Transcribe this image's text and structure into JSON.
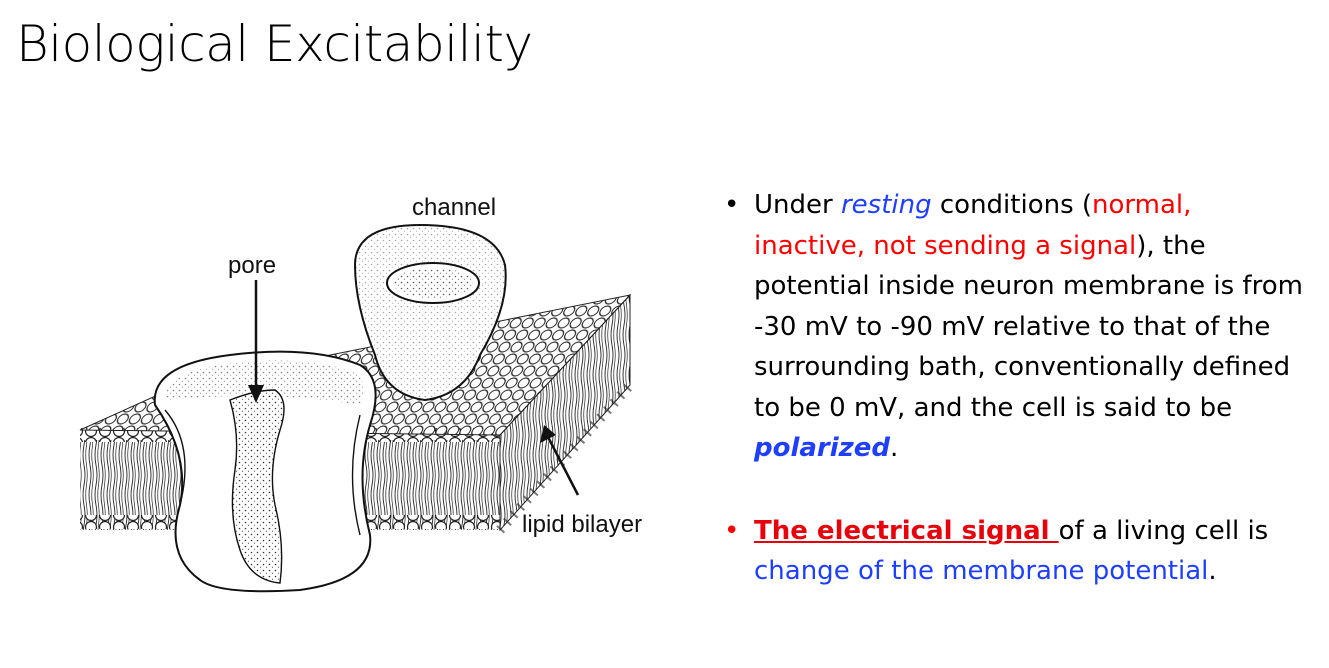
{
  "slide": {
    "title": "Biological Excitability"
  },
  "figure": {
    "labels": {
      "channel": "channel",
      "pore": "pore",
      "lipid_bilayer": "lipid bilayer"
    }
  },
  "bullets": {
    "bullet1": {
      "t1": "Under ",
      "resting": "resting",
      "t2": " conditions (",
      "normal": "normal, inactive, not sending a signal",
      "t3": "), the potential inside neuron membrane is from -30 mV to -90 mV relative to that of the surrounding bath, conventionally defined to be 0 mV, and the cell is said to be ",
      "polarized": "polarized",
      "t4": "."
    },
    "bullet2": {
      "signal": "The electrical signal ",
      "t1": "of a living cell is ",
      "change": "change of the membrane potential",
      "t2": "."
    }
  },
  "colors": {
    "text": "#000000",
    "blue_emphasis": "#1f3fff",
    "red_emphasis": "#ff0000",
    "signal_red": "#e8000a",
    "background": "#ffffff"
  }
}
